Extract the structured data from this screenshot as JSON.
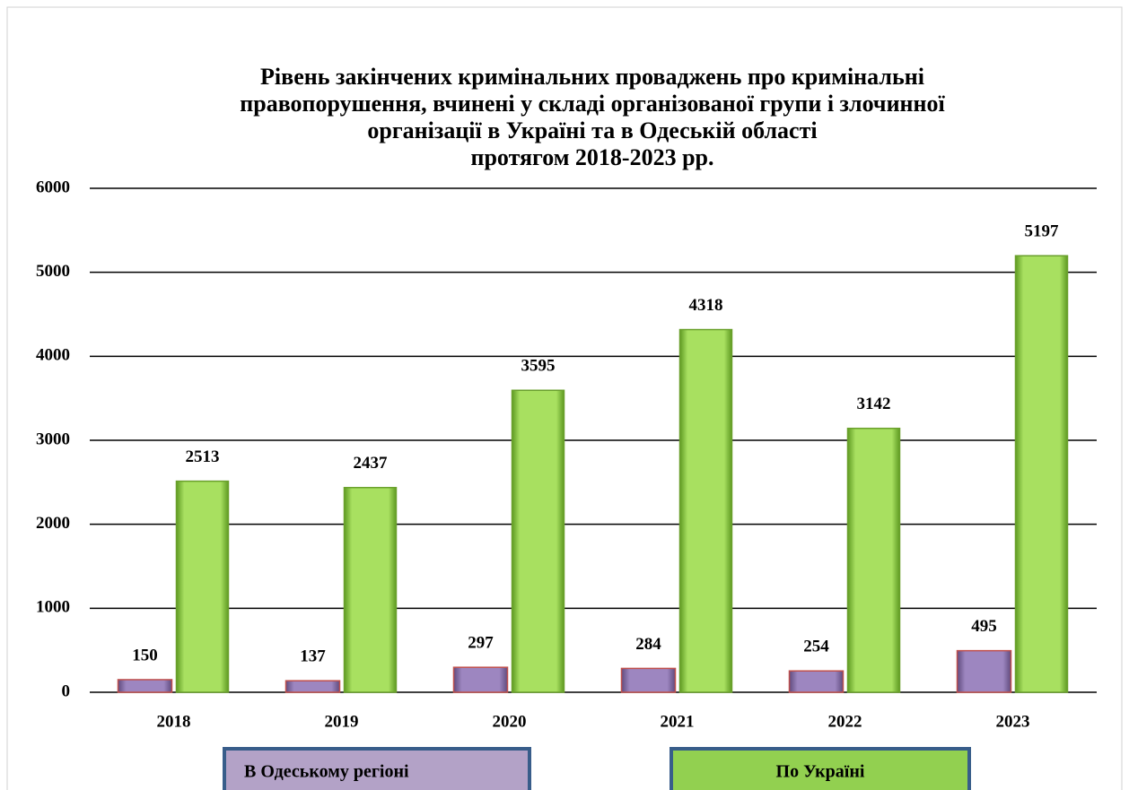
{
  "chart_data": {
    "type": "bar",
    "title": [
      "Рівень закінчених кримінальних проваджень про кримінальні",
      "правопорушення, вчинені у складі організованої групи і злочинної",
      "організації в Україні та в Одеській області",
      "протягом 2018-2023 рр."
    ],
    "categories": [
      "2018",
      "2019",
      "2020",
      "2021",
      "2022",
      "2023"
    ],
    "series": [
      {
        "name": "В Одеському регіоні",
        "color": "#8064a2",
        "values": [
          150,
          137,
          297,
          284,
          254,
          495
        ]
      },
      {
        "name": "По Україні",
        "color": "#92d050",
        "values": [
          2513,
          2437,
          3595,
          4318,
          3142,
          5197
        ]
      }
    ],
    "ylim": [
      0,
      6000
    ],
    "yticks": [
      0,
      1000,
      2000,
      3000,
      4000,
      5000,
      6000
    ],
    "grid": true,
    "legend": "bottom"
  }
}
